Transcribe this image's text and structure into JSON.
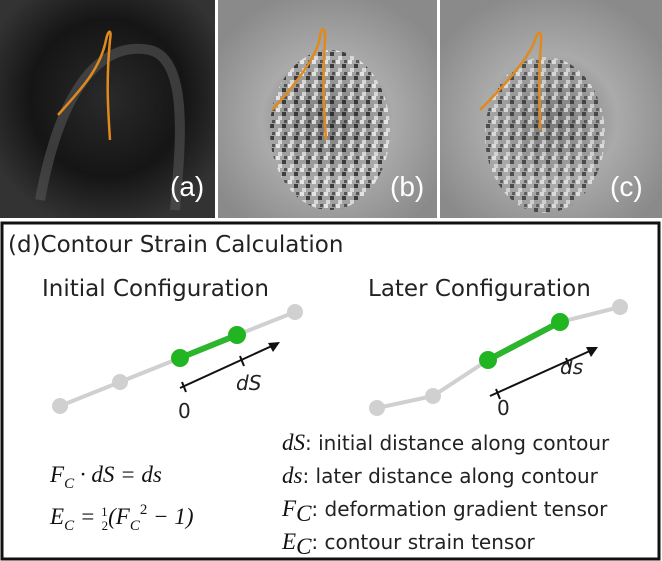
{
  "panels": {
    "a": "(a)",
    "b": "(b)",
    "c": "(c)"
  },
  "diagram": {
    "title": "(d)Contour Strain Calculation",
    "initial": {
      "heading": "Initial Configuration",
      "zero": "0",
      "length": "dS"
    },
    "later": {
      "heading": "Later Configuration",
      "zero": "0",
      "length": "ds"
    },
    "equations": [
      [
        "F",
        "C",
        " · dS = ds"
      ],
      [
        "E",
        "C",
        " = ",
        "1",
        "2",
        "(F",
        "C",
        "2",
        " − 1)"
      ]
    ],
    "legend": [
      [
        "dS",
        ": initial distance along contour"
      ],
      [
        "ds",
        ": later distance along contour"
      ],
      [
        "F",
        "C",
        ": deformation gradient tensor"
      ],
      [
        "E",
        "C",
        ": contour strain tensor"
      ]
    ]
  }
}
